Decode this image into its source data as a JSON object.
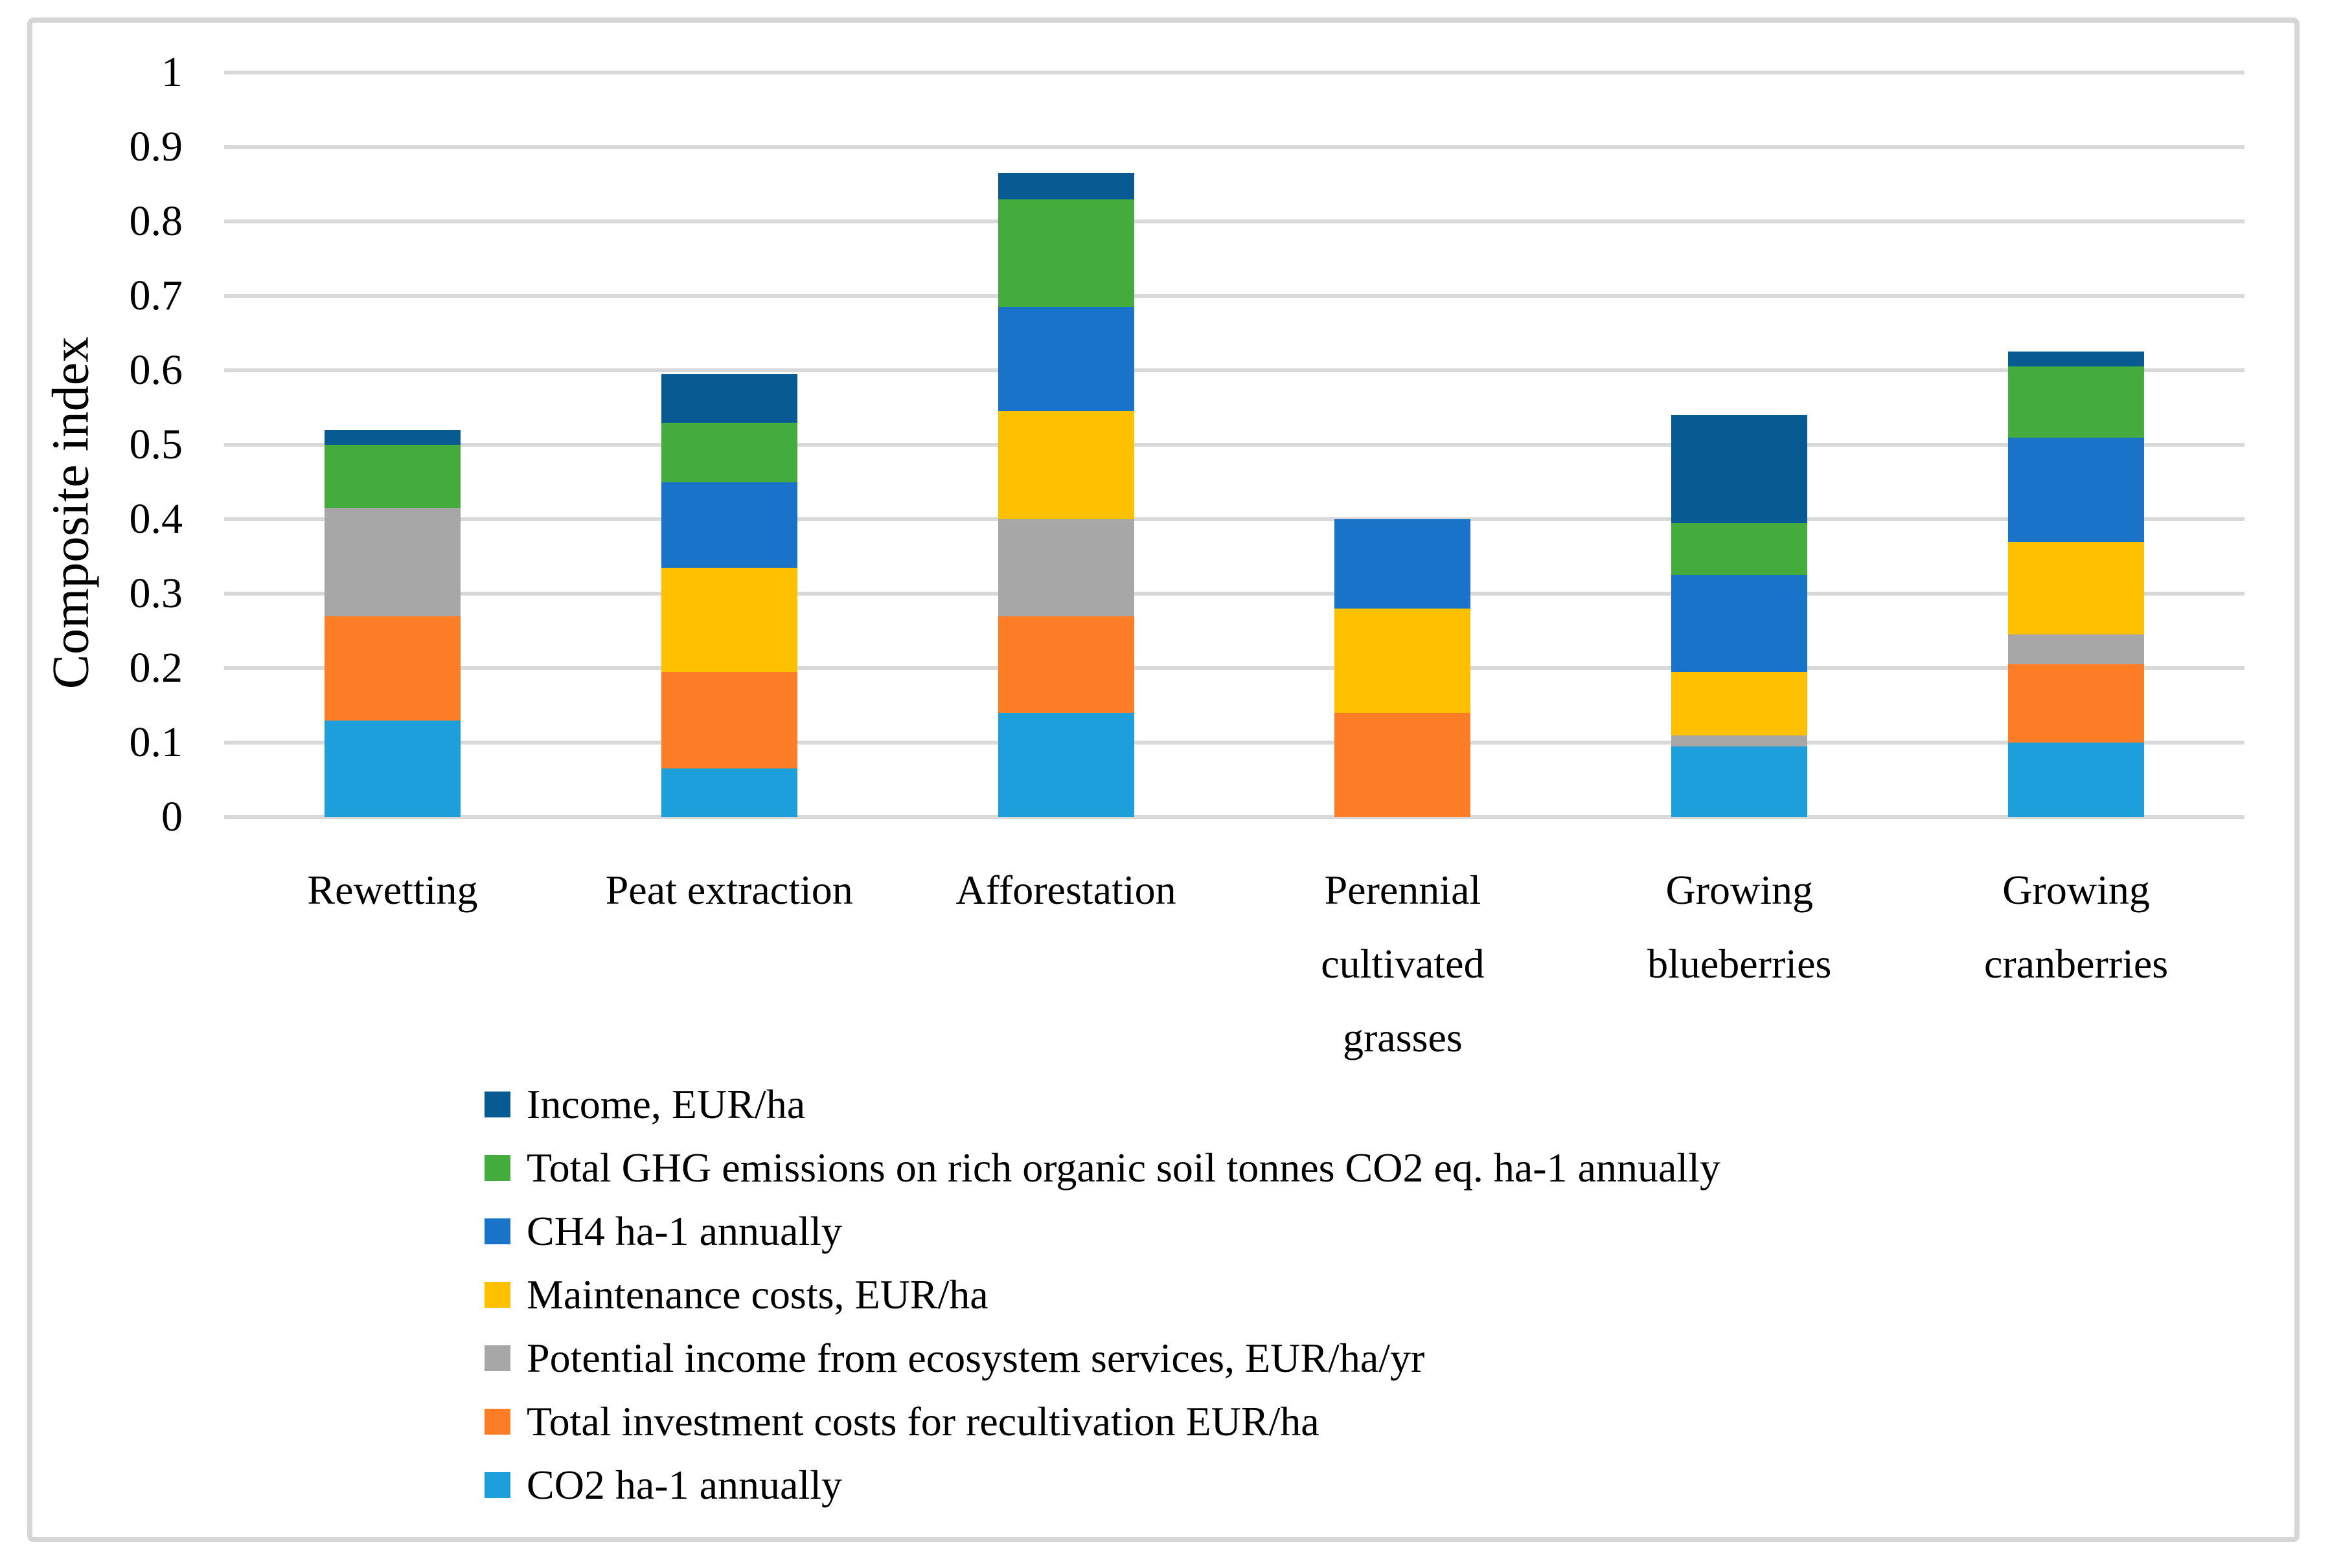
{
  "chart_data": {
    "type": "bar",
    "stacked": true,
    "stack_bottom_to_top": true,
    "title": "",
    "ylabel": "Composite index",
    "xlabel": "",
    "ylim": [
      0,
      1
    ],
    "yticks": [
      "0",
      "0.1",
      "0.2",
      "0.3",
      "0.4",
      "0.5",
      "0.6",
      "0.7",
      "0.8",
      "0.9",
      "1"
    ],
    "grid": "horizontal",
    "legend_position": "bottom-left",
    "legend_order": "top item of legend is top of stack",
    "categories": [
      {
        "label": "Rewetting",
        "lines": [
          "Rewetting"
        ]
      },
      {
        "label": "Peat extraction",
        "lines": [
          "Peat extraction"
        ]
      },
      {
        "label": "Afforestation",
        "lines": [
          "Afforestation"
        ]
      },
      {
        "label": "Perennial cultivated grasses",
        "lines": [
          "Perennial",
          "cultivated",
          "grasses"
        ]
      },
      {
        "label": "Growing blueberries",
        "lines": [
          "Growing",
          "blueberries"
        ]
      },
      {
        "label": "Growing cranberries",
        "lines": [
          "Growing",
          "cranberries"
        ]
      }
    ],
    "series": [
      {
        "name": "CO2 ha-1 annually",
        "color": "#1C9FDA",
        "values": [
          0.13,
          0.065,
          0.14,
          0,
          0.095,
          0.1
        ]
      },
      {
        "name": "Total investment costs for recultivation EUR/ha",
        "color": "#FC7D26",
        "values": [
          0.14,
          0.13,
          0.13,
          0.14,
          0,
          0.105
        ]
      },
      {
        "name": "Potential income from ecosystem services, EUR/ha/yr",
        "color": "#A7A7A7",
        "values": [
          0.145,
          0,
          0.13,
          0,
          0.015,
          0.04
        ]
      },
      {
        "name": "Maintenance costs, EUR/ha",
        "color": "#FFC000",
        "values": [
          0,
          0.14,
          0.145,
          0.14,
          0.085,
          0.125
        ]
      },
      {
        "name": "CH4 ha-1 annually",
        "color": "#1873C9",
        "values": [
          0,
          0.115,
          0.14,
          0.12,
          0.13,
          0.14
        ]
      },
      {
        "name": "Total GHG emissions on rich organic soil tonnes CO2 eq. ha-1 annually",
        "color": "#43AC3C",
        "values": [
          0.085,
          0.08,
          0.145,
          0,
          0.07,
          0.095
        ]
      },
      {
        "name": "Income, EUR/ha",
        "color": "#085A92",
        "values": [
          0.02,
          0.065,
          0.035,
          0,
          0.145,
          0.02
        ]
      }
    ],
    "stack_totals": [
      0.52,
      0.595,
      0.865,
      0.4,
      0.54,
      0.625
    ]
  },
  "colors": {
    "gridline": "#D9D9D9",
    "frame": "#D6D6D6",
    "text": "#000000",
    "background": "#FFFFFF"
  }
}
